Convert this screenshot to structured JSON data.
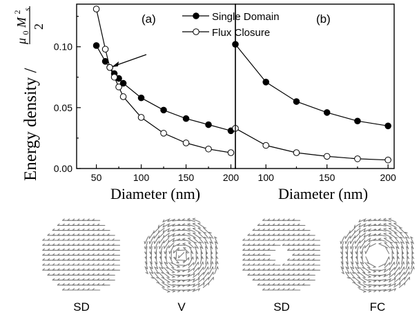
{
  "chart_data": [
    {
      "panel_label": "(a)",
      "type": "line",
      "xlabel": "Diameter (nm)",
      "ylabel": "Energy density / ",
      "ylabel_math": "μ0Ms²/2",
      "ylabel_math_num": "μ",
      "ylabel_math_sub0": "0",
      "ylabel_math_M": "M",
      "ylabel_math_sup": "2",
      "ylabel_math_subs": "s",
      "ylabel_math_den": "2",
      "xlim": [
        28,
        205
      ],
      "ylim": [
        0,
        0.135
      ],
      "xticks": [
        50,
        100,
        150,
        200
      ],
      "yticks": [
        0.0,
        0.05,
        0.1
      ],
      "ytick_labels": [
        "0.00",
        "0.05",
        "0.10"
      ],
      "series": [
        {
          "name": "Single Domain",
          "marker": "filled-circle",
          "x": [
            50,
            60,
            65,
            70,
            75,
            80,
            100,
            125,
            150,
            175,
            200
          ],
          "y": [
            0.101,
            0.088,
            0.083,
            0.078,
            0.074,
            0.07,
            0.058,
            0.048,
            0.041,
            0.036,
            0.031
          ]
        },
        {
          "name": "Flux Closure",
          "marker": "open-circle",
          "x": [
            50,
            60,
            65,
            70,
            75,
            80,
            100,
            125,
            150,
            175,
            200
          ],
          "y": [
            0.131,
            0.098,
            0.083,
            0.075,
            0.067,
            0.059,
            0.042,
            0.029,
            0.021,
            0.016,
            0.013
          ]
        }
      ]
    },
    {
      "panel_label": "(b)",
      "type": "line",
      "xlabel": "Diameter (nm)",
      "xlim": [
        75,
        205
      ],
      "ylim": [
        0,
        0.135
      ],
      "xticks": [
        100,
        150,
        200
      ],
      "series": [
        {
          "marker": "filled-circle",
          "x": [
            75,
            100,
            125,
            150,
            175,
            200
          ],
          "y": [
            0.102,
            0.071,
            0.055,
            0.046,
            0.039,
            0.035
          ]
        },
        {
          "marker": "open-circle",
          "x": [
            75,
            100,
            125,
            150,
            175,
            200
          ],
          "y": [
            0.033,
            0.019,
            0.013,
            0.01,
            0.008,
            0.007
          ]
        }
      ]
    }
  ],
  "bottom_images": [
    {
      "label": "SD",
      "pattern": "uniform",
      "hole": false
    },
    {
      "label": "V",
      "pattern": "vortex",
      "hole": false
    },
    {
      "label": "SD",
      "pattern": "uniform",
      "hole": true
    },
    {
      "label": "FC",
      "pattern": "vortex",
      "hole": true
    }
  ],
  "colors": {
    "arrow_gray": "#7a7a7a",
    "axis": "#000000",
    "background": "#ffffff"
  }
}
